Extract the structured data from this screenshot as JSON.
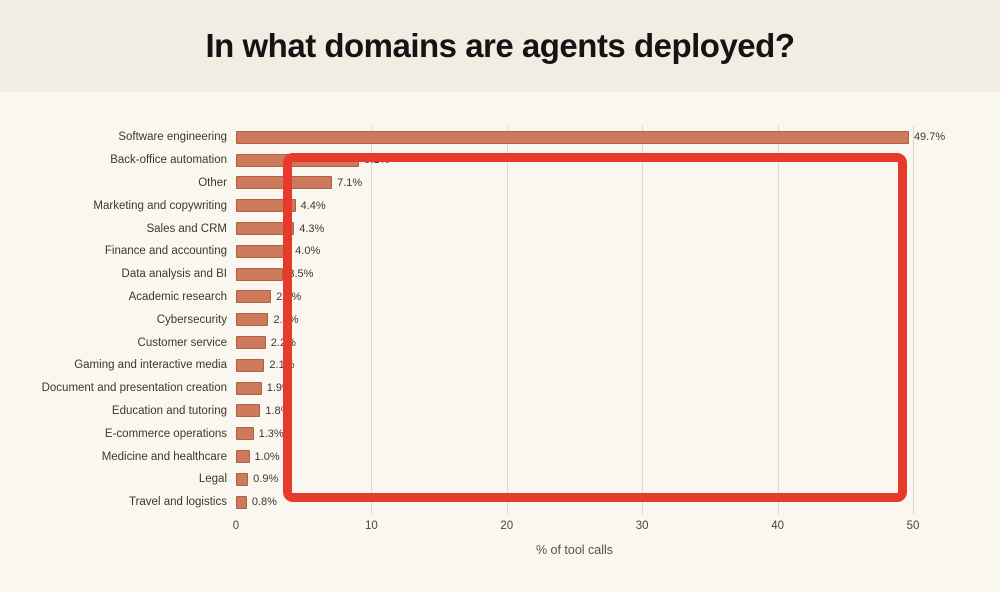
{
  "page": {
    "title": "In what domains are agents deployed?"
  },
  "chart_data": {
    "type": "bar",
    "orientation": "horizontal",
    "title": "In what domains are agents deployed?",
    "xlabel": "% of tool calls",
    "ylabel": "",
    "xlim": [
      0,
      50
    ],
    "x_ticks": [
      0,
      10,
      20,
      30,
      40,
      50
    ],
    "grid": "vertical",
    "bar_color": "#CB7A5B",
    "categories": [
      "Software engineering",
      "Back-office automation",
      "Other",
      "Marketing and copywriting",
      "Sales and CRM",
      "Finance and accounting",
      "Data analysis and BI",
      "Academic research",
      "Cybersecurity",
      "Customer service",
      "Gaming and interactive media",
      "Document and presentation creation",
      "Education and tutoring",
      "E-commerce operations",
      "Medicine and healthcare",
      "Legal",
      "Travel and logistics"
    ],
    "values": [
      49.7,
      9.1,
      7.1,
      4.4,
      4.3,
      4.0,
      3.5,
      2.6,
      2.4,
      2.2,
      2.1,
      1.9,
      1.8,
      1.3,
      1.0,
      0.9,
      0.8
    ],
    "value_labels": [
      "49.7%",
      "9.1%",
      "7.1%",
      "4.4%",
      "4.3%",
      "4.0%",
      "3.5%",
      "2.6%",
      "2.4%",
      "2.2%",
      "2.1%",
      "1.9%",
      "1.8%",
      "1.3%",
      "1.0%",
      "0.9%",
      "0.8%"
    ],
    "annotation": {
      "shape": "rectangle-outline",
      "color": "#E63A2C"
    }
  }
}
